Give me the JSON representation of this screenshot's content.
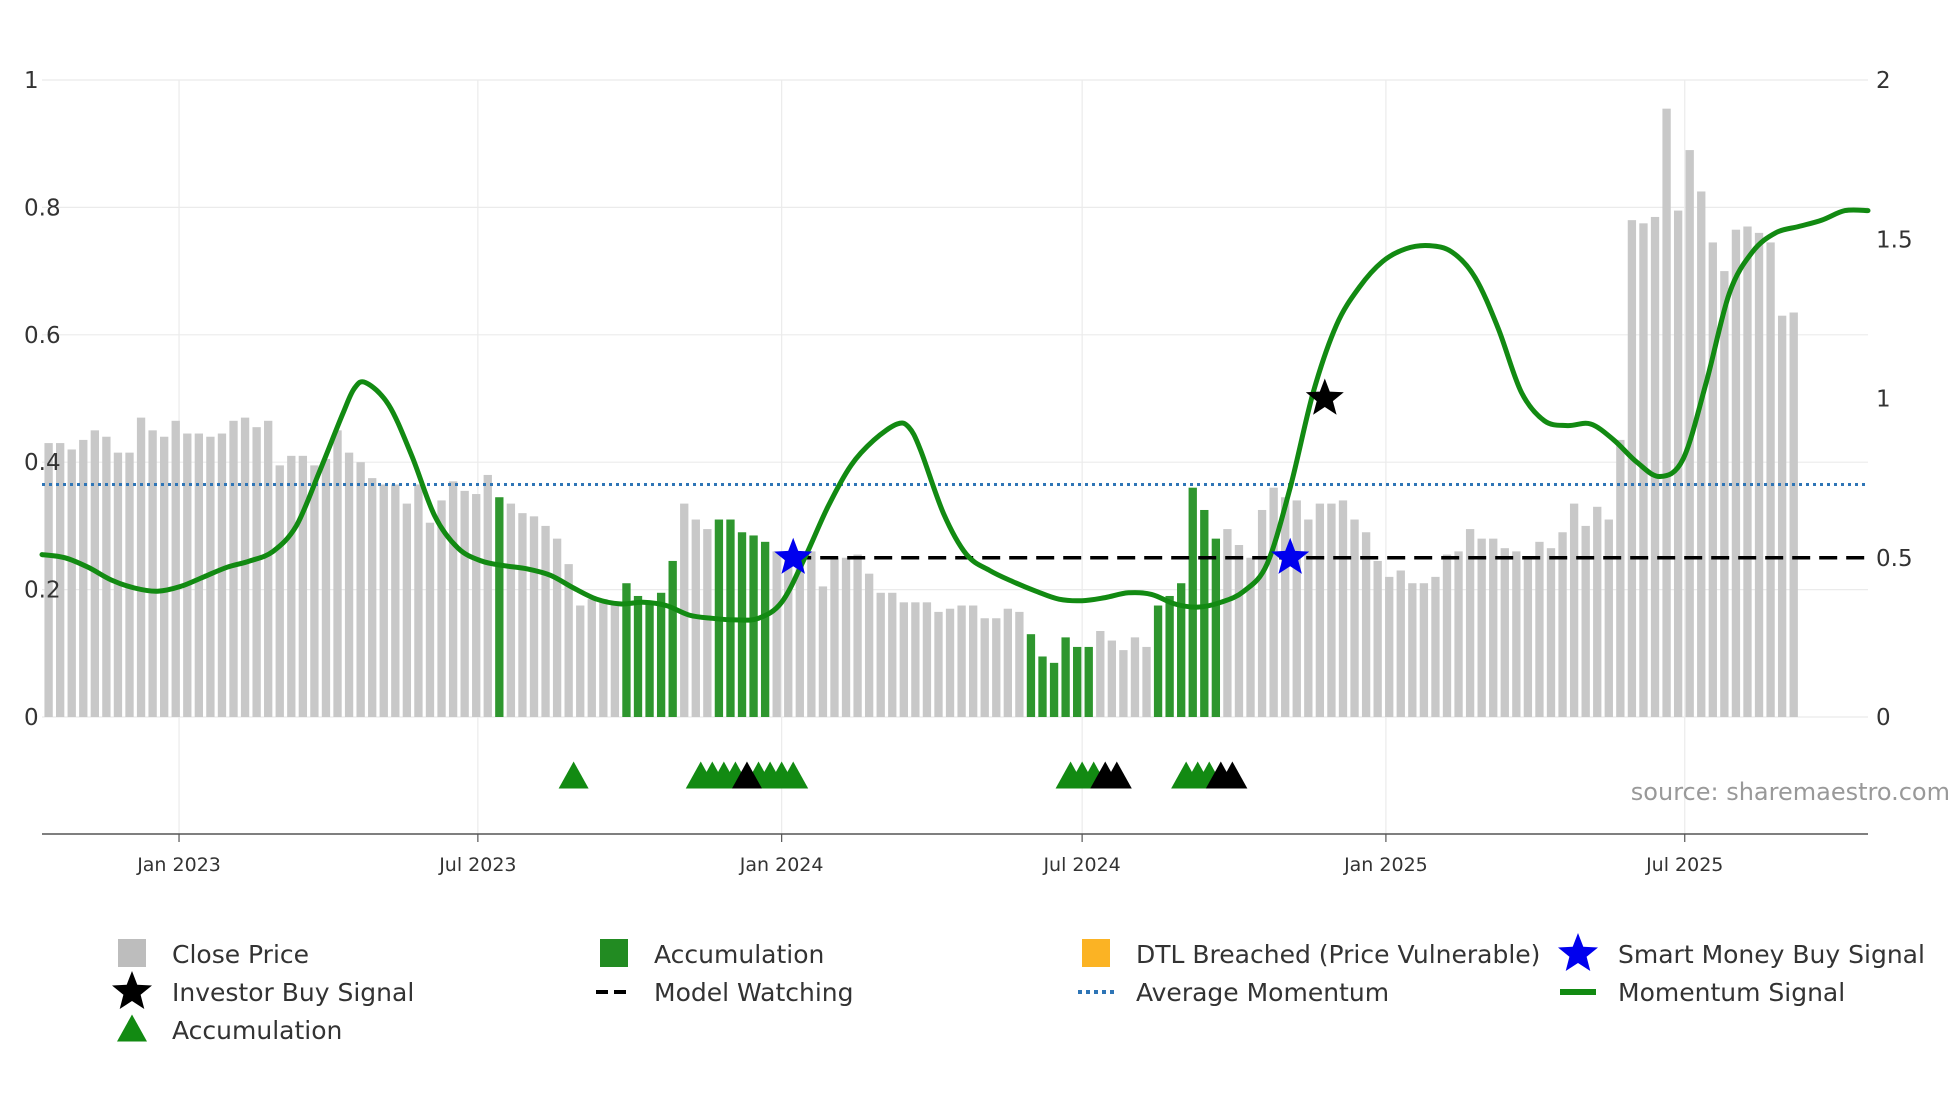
{
  "chart_data": {
    "type": "bar",
    "source": "source: sharemaestro.com",
    "left_axis": {
      "ticks": [
        "0",
        "0.2",
        "0.4",
        "0.6",
        "0.8",
        "1"
      ],
      "values": [
        0,
        0.2,
        0.4,
        0.6,
        0.8,
        1
      ],
      "ylim": [
        0,
        1
      ]
    },
    "right_axis": {
      "ticks": [
        "0",
        "0.5",
        "1",
        "1.5",
        "2"
      ],
      "values": [
        0,
        0.5,
        1,
        1.5,
        2
      ],
      "ylim": [
        0,
        2
      ]
    },
    "x_axis": {
      "start": "2022-10-10",
      "end": "2025-10-20",
      "ticks": [
        {
          "label": "Jan 2023",
          "date": "2023-01-01"
        },
        {
          "label": "Jul 2023",
          "date": "2023-07-01"
        },
        {
          "label": "Jan 2024",
          "date": "2024-01-01"
        },
        {
          "label": "Jul 2024",
          "date": "2024-07-01"
        },
        {
          "label": "Jan 2025",
          "date": "2025-01-01"
        },
        {
          "label": "Jul 2025",
          "date": "2025-07-01"
        }
      ]
    },
    "bars": {
      "start": "2022-10-14",
      "interval_days": 7,
      "values": [
        0.43,
        0.43,
        0.42,
        0.435,
        0.45,
        0.44,
        0.415,
        0.415,
        0.47,
        0.45,
        0.44,
        0.465,
        0.445,
        0.445,
        0.44,
        0.445,
        0.465,
        0.47,
        0.455,
        0.465,
        0.395,
        0.41,
        0.41,
        0.395,
        0.405,
        0.45,
        0.415,
        0.4,
        0.375,
        0.365,
        0.365,
        0.335,
        0.365,
        0.305,
        0.34,
        0.37,
        0.355,
        0.35,
        0.38,
        0.345,
        0.335,
        0.32,
        0.315,
        0.3,
        0.28,
        0.24,
        0.175,
        0.185,
        0.185,
        0.18,
        0.21,
        0.19,
        0.18,
        0.195,
        0.245,
        0.335,
        0.31,
        0.295,
        0.31,
        0.31,
        0.29,
        0.285,
        0.275,
        0.26,
        0.255,
        0.255,
        0.26,
        0.205,
        0.25,
        0.25,
        0.255,
        0.225,
        0.195,
        0.195,
        0.18,
        0.18,
        0.18,
        0.165,
        0.17,
        0.175,
        0.175,
        0.155,
        0.155,
        0.17,
        0.165,
        0.13,
        0.095,
        0.085,
        0.125,
        0.11,
        0.11,
        0.135,
        0.12,
        0.105,
        0.125,
        0.11,
        0.175,
        0.19,
        0.21,
        0.36,
        0.325,
        0.28,
        0.295,
        0.27,
        0.25,
        0.325,
        0.36,
        0.345,
        0.34,
        0.31,
        0.335,
        0.335,
        0.34,
        0.31,
        0.29,
        0.245,
        0.22,
        0.23,
        0.21,
        0.21,
        0.22,
        0.255,
        0.26,
        0.295,
        0.28,
        0.28,
        0.265,
        0.26,
        0.25,
        0.275,
        0.265,
        0.29,
        0.335,
        0.3,
        0.33,
        0.31,
        0.435,
        0.78,
        0.775,
        0.785,
        0.955,
        0.795,
        0.89,
        0.825,
        0.745,
        0.7,
        0.765,
        0.77,
        0.76,
        0.745,
        0.63,
        0.635
      ],
      "accumulation_indices": [
        39,
        50,
        51,
        52,
        53,
        54,
        58,
        59,
        60,
        61,
        62,
        85,
        86,
        87,
        88,
        89,
        90,
        96,
        97,
        98,
        99,
        100,
        101
      ]
    },
    "average_momentum": 0.73,
    "model_watching": {
      "start": "2024-01-08",
      "end": "2025-10-20",
      "value": 0.5
    },
    "momentum_signal": [
      [
        "2022-10-10",
        0.51
      ],
      [
        "2022-10-24",
        0.5
      ],
      [
        "2022-11-07",
        0.47
      ],
      [
        "2022-11-21",
        0.43
      ],
      [
        "2022-12-05",
        0.405
      ],
      [
        "2022-12-19",
        0.395
      ],
      [
        "2023-01-02",
        0.41
      ],
      [
        "2023-01-16",
        0.44
      ],
      [
        "2023-01-30",
        0.47
      ],
      [
        "2023-02-13",
        0.49
      ],
      [
        "2023-02-27",
        0.52
      ],
      [
        "2023-03-13",
        0.6
      ],
      [
        "2023-03-27",
        0.77
      ],
      [
        "2023-04-10",
        0.95
      ],
      [
        "2023-04-17",
        1.03
      ],
      [
        "2023-04-24",
        1.05
      ],
      [
        "2023-05-08",
        0.98
      ],
      [
        "2023-05-22",
        0.82
      ],
      [
        "2023-06-05",
        0.63
      ],
      [
        "2023-06-19",
        0.53
      ],
      [
        "2023-07-03",
        0.49
      ],
      [
        "2023-07-17",
        0.475
      ],
      [
        "2023-07-31",
        0.465
      ],
      [
        "2023-08-14",
        0.445
      ],
      [
        "2023-08-28",
        0.405
      ],
      [
        "2023-09-11",
        0.37
      ],
      [
        "2023-09-25",
        0.355
      ],
      [
        "2023-10-09",
        0.36
      ],
      [
        "2023-10-23",
        0.35
      ],
      [
        "2023-11-06",
        0.32
      ],
      [
        "2023-11-20",
        0.31
      ],
      [
        "2023-12-04",
        0.305
      ],
      [
        "2023-12-18",
        0.31
      ],
      [
        "2024-01-01",
        0.36
      ],
      [
        "2024-01-15",
        0.5
      ],
      [
        "2024-01-29",
        0.66
      ],
      [
        "2024-02-12",
        0.79
      ],
      [
        "2024-02-26",
        0.87
      ],
      [
        "2024-03-11",
        0.92
      ],
      [
        "2024-03-18",
        0.91
      ],
      [
        "2024-03-25",
        0.84
      ],
      [
        "2024-04-08",
        0.64
      ],
      [
        "2024-04-22",
        0.51
      ],
      [
        "2024-05-06",
        0.46
      ],
      [
        "2024-05-20",
        0.425
      ],
      [
        "2024-06-03",
        0.395
      ],
      [
        "2024-06-17",
        0.37
      ],
      [
        "2024-07-01",
        0.365
      ],
      [
        "2024-07-15",
        0.375
      ],
      [
        "2024-07-29",
        0.39
      ],
      [
        "2024-08-12",
        0.385
      ],
      [
        "2024-08-26",
        0.355
      ],
      [
        "2024-09-09",
        0.345
      ],
      [
        "2024-09-23",
        0.36
      ],
      [
        "2024-10-07",
        0.395
      ],
      [
        "2024-10-21",
        0.48
      ],
      [
        "2024-11-04",
        0.72
      ],
      [
        "2024-11-18",
        1.02
      ],
      [
        "2024-12-02",
        1.23
      ],
      [
        "2024-12-16",
        1.35
      ],
      [
        "2024-12-30",
        1.43
      ],
      [
        "2025-01-13",
        1.47
      ],
      [
        "2025-01-27",
        1.48
      ],
      [
        "2025-02-10",
        1.46
      ],
      [
        "2025-02-24",
        1.38
      ],
      [
        "2025-03-10",
        1.22
      ],
      [
        "2025-03-24",
        1.02
      ],
      [
        "2025-04-07",
        0.93
      ],
      [
        "2025-04-21",
        0.915
      ],
      [
        "2025-05-05",
        0.92
      ],
      [
        "2025-05-19",
        0.87
      ],
      [
        "2025-06-02",
        0.8
      ],
      [
        "2025-06-16",
        0.755
      ],
      [
        "2025-06-30",
        0.81
      ],
      [
        "2025-07-14",
        1.05
      ],
      [
        "2025-07-28",
        1.33
      ],
      [
        "2025-08-11",
        1.46
      ],
      [
        "2025-08-25",
        1.52
      ],
      [
        "2025-09-08",
        1.54
      ],
      [
        "2025-09-22",
        1.56
      ],
      [
        "2025-10-06",
        1.59
      ],
      [
        "2025-10-20",
        1.59
      ]
    ],
    "investor_buy_signal": [
      [
        "2024-11-25",
        1.0
      ]
    ],
    "smart_money_buy_signal": [
      [
        "2024-01-08",
        0.5
      ],
      [
        "2024-11-04",
        0.5
      ]
    ],
    "accumulation_markers": {
      "green": [
        "2023-08-28",
        "2023-11-13",
        "2023-11-20",
        "2023-11-27",
        "2023-12-04",
        "2023-12-18",
        "2023-12-25",
        "2024-01-01",
        "2024-01-08",
        "2024-06-24",
        "2024-07-01",
        "2024-07-08",
        "2024-09-02",
        "2024-09-09",
        "2024-09-16"
      ],
      "black": [
        "2023-12-11",
        "2024-07-15",
        "2024-07-22",
        "2024-09-23",
        "2024-09-30"
      ]
    },
    "legend": [
      {
        "label": "Close Price",
        "symbol": "square",
        "color": "#bdbdbd"
      },
      {
        "label": "Accumulation",
        "symbol": "square",
        "color": "#228b22"
      },
      {
        "label": "DTL Breached (Price Vulnerable)",
        "symbol": "square",
        "color": "#fbb324"
      },
      {
        "label": "Smart Money Buy Signal",
        "symbol": "star",
        "color": "#0000ee"
      },
      {
        "label": "Investor Buy Signal",
        "symbol": "star",
        "color": "#000000"
      },
      {
        "label": "Model Watching",
        "symbol": "dash",
        "color": "#000000"
      },
      {
        "label": "Average Momentum",
        "symbol": "dot",
        "color": "#2e75b6"
      },
      {
        "label": "Momentum Signal",
        "symbol": "line",
        "color": "#128a12"
      },
      {
        "label": "Accumulation",
        "symbol": "triangle",
        "color": "#128a12"
      }
    ],
    "colors": {
      "bar": "#c8c8c8",
      "bar_accumulation": "#2e962e",
      "momentum": "#128a12",
      "average": "#2e75b6",
      "watching": "#000000",
      "grid": "#ebebeb",
      "axis": "#555555"
    }
  }
}
